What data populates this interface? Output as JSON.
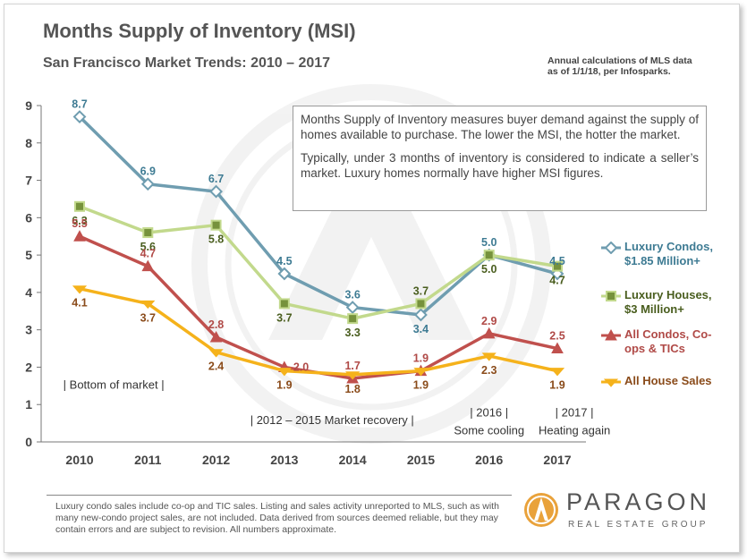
{
  "title": "Months Supply of Inventory (MSI)",
  "subtitle": "San Francisco Market Trends: 2010 – 2017",
  "note": [
    "Annual calculations of MLS data",
    "as of 1/1/18, per Infosparks."
  ],
  "info_text": [
    "Months Supply of Inventory measures buyer demand against the supply of homes available to purchase. The lower the MSI, the hotter the market.",
    "Typically, under 3 months of inventory is considered to indicate a seller’s market. Luxury homes normally have higher MSI figures."
  ],
  "annotations": [
    {
      "text": "| Bottom  of market |",
      "x": 2010.5,
      "y": 1.43
    },
    {
      "text": "|   2012 – 2015 Market recovery   |",
      "x": 2013.7,
      "y": 0.48
    },
    {
      "text": "| 2016 |",
      "x": 2016.0,
      "y": 0.68
    },
    {
      "text": "Some cooling",
      "x": 2016.0,
      "y": 0.2
    },
    {
      "text": "| 2017 |",
      "x": 2017.25,
      "y": 0.68
    },
    {
      "text": "Heating again",
      "x": 2017.25,
      "y": 0.2
    }
  ],
  "footer": "Luxury condo sales include co-op and TIC sales. Listing and sales activity unreported to MLS, such as with many new-condo project sales, are not included. Data derived from sources deemed reliable, but they may contain errors and are subject to revision.  All numbers approximate.",
  "logo": {
    "brand": "PARAGON",
    "sub": "REAL ESTATE GROUP"
  },
  "chart_data": {
    "type": "line",
    "title": "Months Supply of Inventory (MSI)",
    "x": [
      2010,
      2011,
      2012,
      2013,
      2014,
      2015,
      2016,
      2017
    ],
    "ylim": [
      0,
      9
    ],
    "yticks": [
      0,
      1,
      2,
      3,
      4,
      5,
      6,
      7,
      8,
      9
    ],
    "grid": false,
    "legend_position": "right",
    "series": [
      {
        "name": "Luxury Condos, $1.85 Million+",
        "legend_lines": [
          "Luxury Condos,",
          "$1.85 Million+"
        ],
        "values": [
          8.7,
          6.9,
          6.7,
          4.5,
          3.6,
          3.4,
          5.0,
          4.5
        ],
        "color": "#6f9db0",
        "text_color": "#3e7b93",
        "marker": "diamond"
      },
      {
        "name": "Luxury Houses, $3 Million+",
        "legend_lines": [
          "Luxury Houses,",
          "$3 Million+"
        ],
        "values": [
          6.3,
          5.6,
          5.8,
          3.7,
          3.3,
          3.7,
          5.0,
          4.7
        ],
        "color": "#c2d98c",
        "text_color": "#4a5e1f",
        "marker": "square"
      },
      {
        "name": "All Condos, Co-ops & TICs",
        "legend_lines": [
          "All Condos, Co-",
          "ops & TICs"
        ],
        "values": [
          5.5,
          4.7,
          2.8,
          2.0,
          1.7,
          1.9,
          2.9,
          2.5
        ],
        "color": "#c0504d",
        "text_color": "#b04a47",
        "marker": "triangle"
      },
      {
        "name": "All House Sales",
        "legend_lines": [
          "All House Sales"
        ],
        "values": [
          4.1,
          3.7,
          2.4,
          1.9,
          1.8,
          1.9,
          2.3,
          1.9
        ],
        "color": "#f5b21b",
        "text_color": "#8a4b1a",
        "marker": "star"
      }
    ],
    "data_labels": [
      [
        {
          "text": "8.7",
          "pos": "above"
        },
        {
          "text": "6.9",
          "pos": "above"
        },
        {
          "text": "6.7",
          "pos": "above"
        },
        {
          "text": "4.5",
          "pos": "above"
        },
        {
          "text": "3.6",
          "pos": "above"
        },
        {
          "text": "3.4",
          "pos": "below"
        },
        {
          "text": "5.0",
          "pos": "above"
        },
        {
          "text": "4.5",
          "pos": "above"
        }
      ],
      [
        {
          "text": "6.3",
          "pos": "below"
        },
        {
          "text": "5.6",
          "pos": "below"
        },
        {
          "text": "5.8",
          "pos": "below"
        },
        {
          "text": "3.7",
          "pos": "below"
        },
        {
          "text": "3.3",
          "pos": "below"
        },
        {
          "text": "3.7",
          "pos": "above"
        },
        {
          "text": "5.0",
          "pos": "below"
        },
        {
          "text": "4.7",
          "pos": "below"
        }
      ],
      [
        {
          "text": "5.5",
          "pos": "above"
        },
        {
          "text": "4.7",
          "pos": "above"
        },
        {
          "text": "2.8",
          "pos": "above"
        },
        {
          "text": "2.0",
          "pos": "right"
        },
        {
          "text": "1.7",
          "pos": "above"
        },
        {
          "text": "1.9",
          "pos": "above"
        },
        {
          "text": "2.9",
          "pos": "above"
        },
        {
          "text": "2.5",
          "pos": "above"
        }
      ],
      [
        {
          "text": "4.1",
          "pos": "below"
        },
        {
          "text": "3.7",
          "pos": "below"
        },
        {
          "text": "2.4",
          "pos": "below"
        },
        {
          "text": "1.9",
          "pos": "below"
        },
        {
          "text": "1.8",
          "pos": "below"
        },
        {
          "text": "1.9",
          "pos": "below"
        },
        {
          "text": "2.3",
          "pos": "below"
        },
        {
          "text": "1.9",
          "pos": "below"
        }
      ]
    ]
  }
}
